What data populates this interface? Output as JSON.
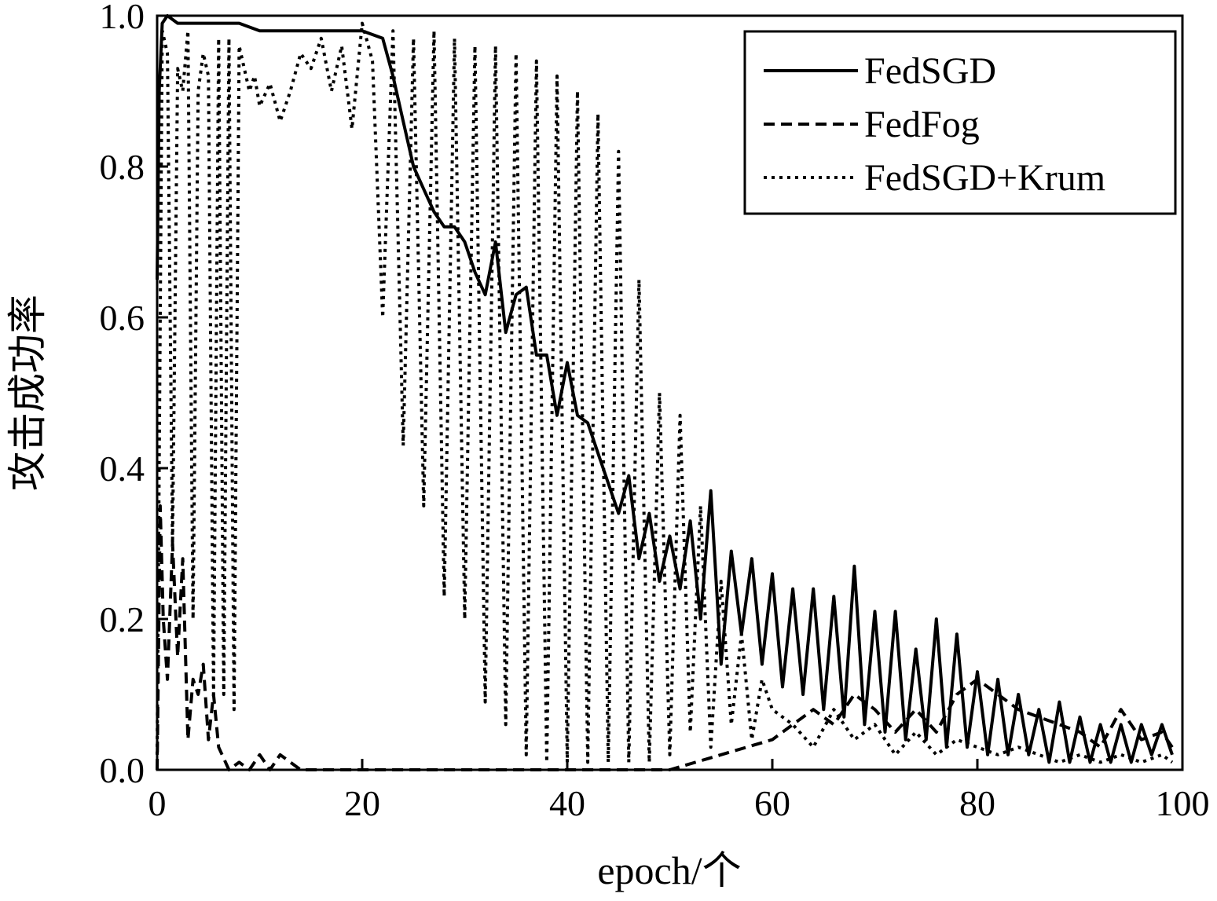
{
  "chart_data": {
    "type": "line",
    "xlabel": "epoch/个",
    "ylabel": "攻击成功率",
    "xlim": [
      0,
      100
    ],
    "ylim": [
      0.0,
      1.0
    ],
    "xticks": [
      "0",
      "20",
      "40",
      "60",
      "80",
      "100"
    ],
    "yticks": [
      "0.0",
      "0.2",
      "0.4",
      "0.6",
      "0.8",
      "1.0"
    ],
    "grid": false,
    "legend_position": "top-right",
    "series": [
      {
        "name": "FedSGD",
        "style": "solid",
        "color": "#000000",
        "x": [
          0,
          0.2,
          0.5,
          1,
          2,
          4,
          6,
          8,
          10,
          12,
          14,
          16,
          18,
          20,
          22,
          23,
          24,
          25,
          26,
          27,
          28,
          29,
          30,
          31,
          32,
          33,
          34,
          35,
          36,
          37,
          38,
          39,
          40,
          41,
          42,
          43,
          44,
          45,
          46,
          47,
          48,
          49,
          50,
          51,
          52,
          53,
          54,
          55,
          56,
          57,
          58,
          59,
          60,
          61,
          62,
          63,
          64,
          65,
          66,
          67,
          68,
          69,
          70,
          71,
          72,
          73,
          74,
          75,
          76,
          77,
          78,
          79,
          80,
          81,
          82,
          83,
          84,
          85,
          86,
          87,
          88,
          89,
          90,
          91,
          92,
          93,
          94,
          95,
          96,
          97,
          98,
          99
        ],
        "y": [
          0.65,
          0.9,
          0.99,
          1.0,
          0.99,
          0.99,
          0.99,
          0.99,
          0.98,
          0.98,
          0.98,
          0.98,
          0.98,
          0.98,
          0.97,
          0.92,
          0.86,
          0.8,
          0.77,
          0.74,
          0.72,
          0.72,
          0.7,
          0.66,
          0.63,
          0.7,
          0.58,
          0.63,
          0.64,
          0.55,
          0.55,
          0.47,
          0.54,
          0.47,
          0.46,
          0.42,
          0.38,
          0.34,
          0.39,
          0.28,
          0.34,
          0.25,
          0.31,
          0.24,
          0.33,
          0.2,
          0.37,
          0.14,
          0.29,
          0.18,
          0.28,
          0.14,
          0.26,
          0.11,
          0.24,
          0.1,
          0.24,
          0.08,
          0.23,
          0.07,
          0.27,
          0.06,
          0.21,
          0.05,
          0.21,
          0.04,
          0.16,
          0.04,
          0.2,
          0.03,
          0.18,
          0.03,
          0.13,
          0.02,
          0.12,
          0.02,
          0.1,
          0.02,
          0.08,
          0.01,
          0.09,
          0.01,
          0.07,
          0.01,
          0.06,
          0.01,
          0.06,
          0.01,
          0.06,
          0.02,
          0.06,
          0.02
        ]
      },
      {
        "name": "FedFog",
        "style": "dashed",
        "color": "#000000",
        "x": [
          0,
          0.3,
          0.6,
          1,
          1.5,
          2,
          2.5,
          3,
          3.5,
          4,
          4.5,
          5,
          5.5,
          6,
          7,
          8,
          9,
          10,
          11,
          12,
          14,
          16,
          18,
          20,
          25,
          30,
          35,
          40,
          45,
          50,
          55,
          60,
          62,
          64,
          66,
          68,
          70,
          72,
          74,
          76,
          78,
          80,
          82,
          84,
          86,
          88,
          90,
          92,
          94,
          96,
          98,
          99
        ],
        "y": [
          0.0,
          0.35,
          0.2,
          0.12,
          0.3,
          0.15,
          0.28,
          0.04,
          0.12,
          0.1,
          0.14,
          0.04,
          0.1,
          0.03,
          0.0,
          0.01,
          0.0,
          0.02,
          0.0,
          0.02,
          0.0,
          0.0,
          0.0,
          0.0,
          0.0,
          0.0,
          0.0,
          0.0,
          0.0,
          0.0,
          0.02,
          0.04,
          0.06,
          0.08,
          0.06,
          0.1,
          0.08,
          0.05,
          0.08,
          0.05,
          0.1,
          0.12,
          0.1,
          0.08,
          0.07,
          0.06,
          0.05,
          0.03,
          0.08,
          0.04,
          0.05,
          0.03
        ]
      },
      {
        "name": "FedSGD+Krum",
        "style": "dotted",
        "color": "#000000",
        "x": [
          0,
          0.5,
          1,
          1.5,
          2,
          2.5,
          3,
          3.5,
          4,
          4.5,
          5,
          5.5,
          6,
          6.5,
          7,
          7.5,
          8,
          8.5,
          9,
          9.5,
          10,
          11,
          12,
          13,
          14,
          15,
          16,
          17,
          18,
          19,
          20,
          21,
          22,
          23,
          24,
          25,
          26,
          27,
          28,
          29,
          30,
          31,
          32,
          33,
          34,
          35,
          36,
          37,
          38,
          39,
          40,
          41,
          42,
          43,
          44,
          45,
          46,
          47,
          48,
          49,
          50,
          51,
          52,
          53,
          54,
          55,
          56,
          57,
          58,
          59,
          60,
          62,
          64,
          66,
          68,
          70,
          72,
          74,
          76,
          78,
          80,
          82,
          84,
          86,
          88,
          90,
          92,
          94,
          96,
          98,
          99
        ],
        "y": [
          0.02,
          0.98,
          0.95,
          0.3,
          0.93,
          0.9,
          0.98,
          0.2,
          0.9,
          0.95,
          0.92,
          0.1,
          0.97,
          0.1,
          0.97,
          0.08,
          0.96,
          0.93,
          0.9,
          0.92,
          0.88,
          0.91,
          0.86,
          0.9,
          0.95,
          0.93,
          0.97,
          0.9,
          0.96,
          0.85,
          0.99,
          0.94,
          0.6,
          0.98,
          0.43,
          0.97,
          0.35,
          0.98,
          0.23,
          0.97,
          0.2,
          0.96,
          0.09,
          0.96,
          0.06,
          0.95,
          0.02,
          0.94,
          0.01,
          0.92,
          0.01,
          0.9,
          0.01,
          0.87,
          0.01,
          0.82,
          0.01,
          0.65,
          0.01,
          0.5,
          0.02,
          0.47,
          0.05,
          0.35,
          0.03,
          0.25,
          0.06,
          0.18,
          0.04,
          0.12,
          0.08,
          0.06,
          0.03,
          0.08,
          0.04,
          0.06,
          0.02,
          0.05,
          0.02,
          0.04,
          0.03,
          0.02,
          0.03,
          0.02,
          0.01,
          0.02,
          0.01,
          0.02,
          0.01,
          0.02,
          0.01
        ]
      }
    ]
  }
}
